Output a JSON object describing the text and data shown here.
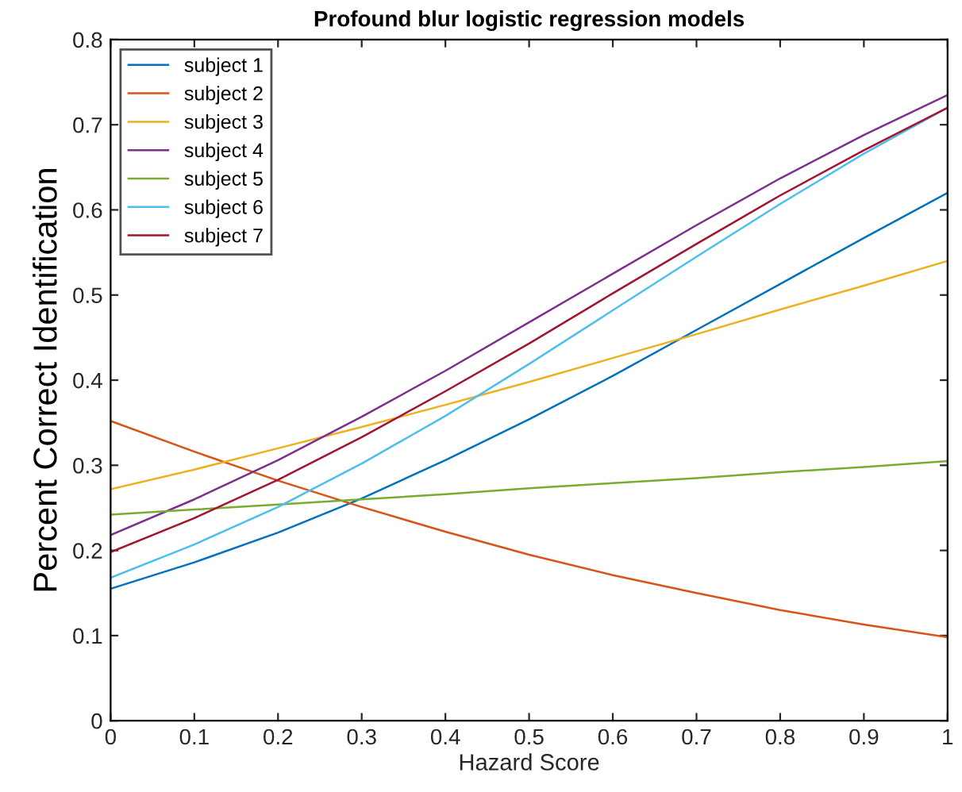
{
  "chart_data": {
    "type": "line",
    "title": "Profound blur logistic regression models",
    "xlabel": "Hazard Score",
    "ylabel": "Percent Correct Identification",
    "x": [
      0,
      0.1,
      0.2,
      0.3,
      0.4,
      0.5,
      0.6,
      0.7,
      0.8,
      0.9,
      1
    ],
    "series": [
      {
        "name": "subject 1",
        "color": "#0072bd",
        "values": [
          0.155,
          0.186,
          0.221,
          0.261,
          0.306,
          0.354,
          0.405,
          0.459,
          0.513,
          0.567,
          0.62
        ]
      },
      {
        "name": "subject 2",
        "color": "#d95319",
        "values": [
          0.352,
          0.316,
          0.282,
          0.251,
          0.222,
          0.195,
          0.171,
          0.15,
          0.13,
          0.113,
          0.098
        ]
      },
      {
        "name": "subject 3",
        "color": "#edb120",
        "values": [
          0.272,
          0.295,
          0.32,
          0.345,
          0.371,
          0.398,
          0.426,
          0.454,
          0.483,
          0.511,
          0.54
        ]
      },
      {
        "name": "subject 4",
        "color": "#7e2f8e",
        "values": [
          0.218,
          0.26,
          0.306,
          0.357,
          0.411,
          0.468,
          0.525,
          0.582,
          0.637,
          0.688,
          0.735
        ]
      },
      {
        "name": "subject 5",
        "color": "#77ac30",
        "values": [
          0.242,
          0.248,
          0.254,
          0.26,
          0.266,
          0.273,
          0.279,
          0.285,
          0.292,
          0.298,
          0.305
        ]
      },
      {
        "name": "subject 6",
        "color": "#4dbeee",
        "values": [
          0.168,
          0.207,
          0.251,
          0.302,
          0.358,
          0.419,
          0.482,
          0.545,
          0.607,
          0.666,
          0.72
        ]
      },
      {
        "name": "subject 7",
        "color": "#a2142f",
        "values": [
          0.198,
          0.238,
          0.283,
          0.333,
          0.387,
          0.443,
          0.502,
          0.56,
          0.617,
          0.67,
          0.72
        ]
      }
    ],
    "xlim": [
      0,
      1
    ],
    "ylim": [
      0,
      0.8
    ],
    "xticks": [
      0,
      0.1,
      0.2,
      0.3,
      0.4,
      0.5,
      0.6,
      0.7,
      0.8,
      0.9,
      1
    ],
    "yticks": [
      0,
      0.1,
      0.2,
      0.3,
      0.4,
      0.5,
      0.6,
      0.7,
      0.8
    ],
    "legend": "top left",
    "grid": false,
    "marker": "none",
    "line_style": "solid"
  }
}
